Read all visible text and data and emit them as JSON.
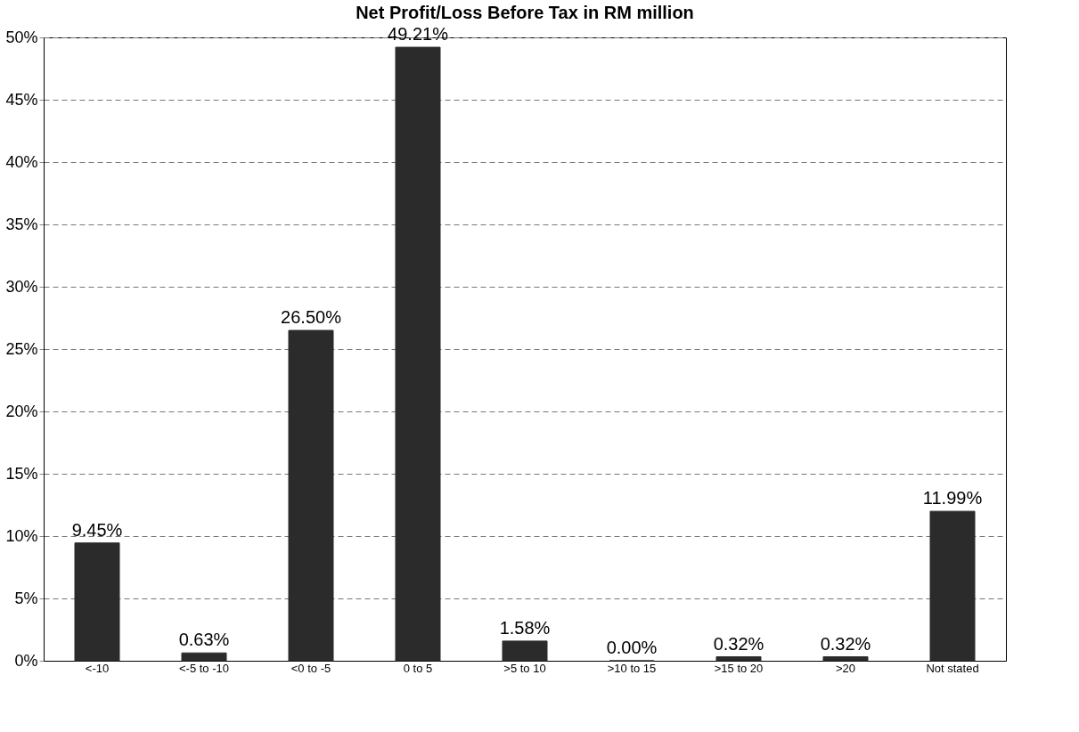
{
  "chart_data": {
    "type": "bar",
    "title": "Net Profit/Loss Before Tax in RM million",
    "categories": [
      "<-10",
      "<-5 to -10",
      "<0 to -5",
      "0 to 5",
      ">5 to 10",
      ">10 to 15",
      ">15 to 20",
      ">20",
      "Not stated"
    ],
    "values": [
      9.45,
      0.63,
      26.5,
      49.21,
      1.58,
      0.0,
      0.32,
      0.32,
      11.99
    ],
    "value_labels": [
      "9.45%",
      "0.63%",
      "26.50%",
      "49.21%",
      "1.58%",
      "0.00%",
      "0.32%",
      "0.32%",
      "11.99%"
    ],
    "color": "#2b2b2b",
    "ylim": [
      0,
      50
    ],
    "yticks": [
      {
        "value": 0,
        "label": "0%"
      },
      {
        "value": 5,
        "label": "5%"
      },
      {
        "value": 10,
        "label": "10%"
      },
      {
        "value": 15,
        "label": "15%"
      },
      {
        "value": 20,
        "label": "20%"
      },
      {
        "value": 25,
        "label": "25%"
      },
      {
        "value": 30,
        "label": "30%"
      },
      {
        "value": 35,
        "label": "35%"
      },
      {
        "value": 40,
        "label": "40%"
      },
      {
        "value": 45,
        "label": "45%"
      },
      {
        "value": 50,
        "label": "50%"
      }
    ],
    "grid": "y"
  }
}
